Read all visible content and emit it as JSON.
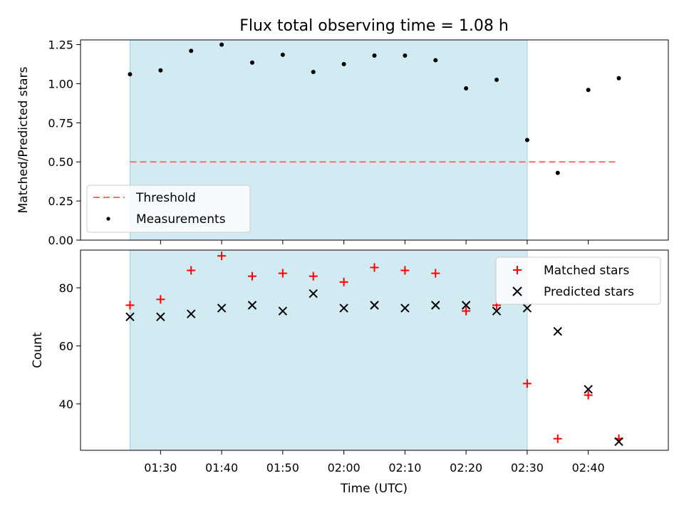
{
  "chart_data": [
    {
      "type": "scatter",
      "title": "Flux total observing time = 1.08 h",
      "ylabel": "Matched/Predicted stars",
      "xlabel": "",
      "ylim": [
        0.0,
        1.28
      ],
      "yticks": [
        0.0,
        0.25,
        0.5,
        0.75,
        1.0,
        1.25
      ],
      "yticklabels": [
        "0.00",
        "0.25",
        "0.50",
        "0.75",
        "1.00",
        "1.25"
      ],
      "shaded_span": {
        "from": "01:25",
        "to": "02:30",
        "color": "#add8e6"
      },
      "threshold": {
        "name": "Threshold",
        "value": 0.5,
        "from": "01:25",
        "to": "02:45",
        "color": "#ff6b6b",
        "style": "dashed"
      },
      "series": [
        {
          "name": "Measurements",
          "marker": "dot",
          "color": "#000000",
          "x": [
            "01:25",
            "01:30",
            "01:35",
            "01:40",
            "01:45",
            "01:50",
            "01:55",
            "02:00",
            "02:05",
            "02:10",
            "02:15",
            "02:20",
            "02:25",
            "02:30",
            "02:35",
            "02:40",
            "02:45"
          ],
          "values": [
            1.06,
            1.085,
            1.21,
            1.25,
            1.135,
            1.185,
            1.075,
            1.125,
            1.18,
            1.18,
            1.15,
            0.97,
            1.025,
            0.64,
            0.43,
            0.96,
            1.035
          ]
        }
      ],
      "legend": {
        "position": "lower-left"
      }
    },
    {
      "type": "scatter",
      "title": "",
      "ylabel": "Count",
      "xlabel": "Time (UTC)",
      "ylim": [
        24,
        93
      ],
      "yticks": [
        40,
        60,
        80
      ],
      "yticklabels": [
        "40",
        "60",
        "80"
      ],
      "xticks": [
        "01:30",
        "01:40",
        "01:50",
        "02:00",
        "02:10",
        "02:20",
        "02:30",
        "02:40"
      ],
      "shaded_span": {
        "from": "01:25",
        "to": "02:30",
        "color": "#add8e6"
      },
      "series": [
        {
          "name": "Matched stars",
          "marker": "plus",
          "color": "#ff0000",
          "x": [
            "01:25",
            "01:30",
            "01:35",
            "01:40",
            "01:45",
            "01:50",
            "01:55",
            "02:00",
            "02:05",
            "02:10",
            "02:15",
            "02:20",
            "02:25",
            "02:30",
            "02:35",
            "02:40",
            "02:45"
          ],
          "values": [
            74,
            76,
            86,
            91,
            84,
            85,
            84,
            82,
            87,
            86,
            85,
            72,
            74,
            47,
            28,
            43,
            28
          ]
        },
        {
          "name": "Predicted stars",
          "marker": "x",
          "color": "#000000",
          "x": [
            "01:25",
            "01:30",
            "01:35",
            "01:40",
            "01:45",
            "01:50",
            "01:55",
            "02:00",
            "02:05",
            "02:10",
            "02:15",
            "02:20",
            "02:25",
            "02:30",
            "02:35",
            "02:40",
            "02:45"
          ],
          "values": [
            70,
            70,
            71,
            73,
            74,
            72,
            78,
            73,
            74,
            73,
            74,
            74,
            72,
            73,
            65,
            45,
            27
          ]
        }
      ],
      "legend": {
        "position": "top-right"
      }
    }
  ]
}
